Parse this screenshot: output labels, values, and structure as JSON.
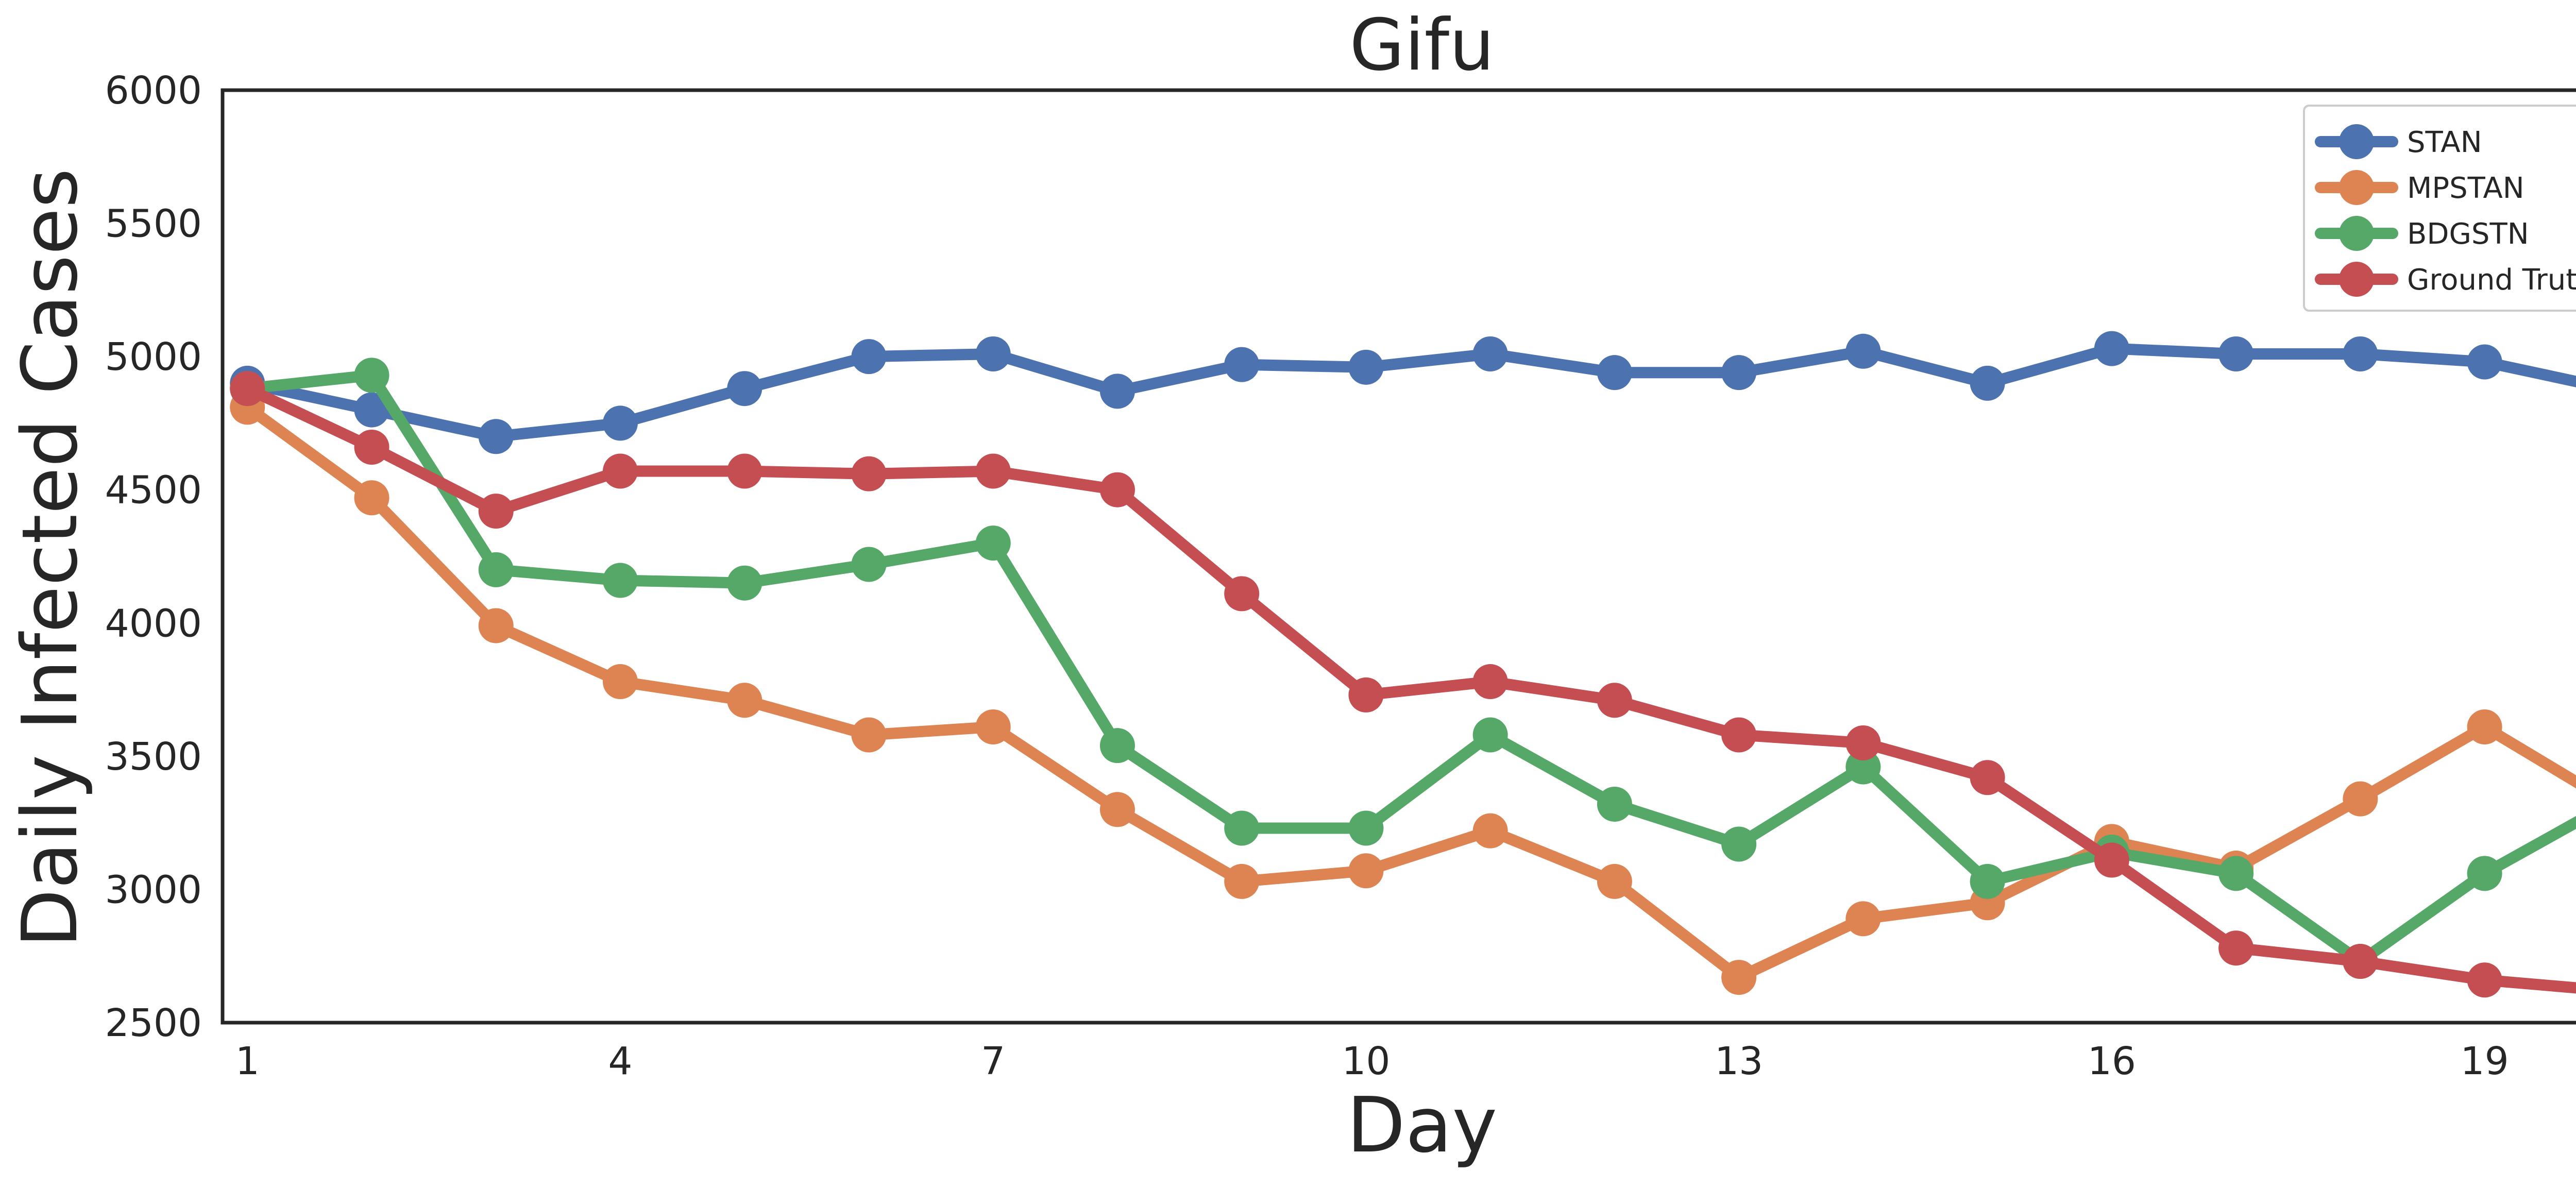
{
  "chart_data": {
    "type": "line",
    "title": "Gifu",
    "xlabel": "Day",
    "ylabel": "Daily Infected Cases",
    "x": [
      1,
      2,
      3,
      4,
      5,
      6,
      7,
      8,
      9,
      10,
      11,
      12,
      13,
      14,
      15,
      16,
      17,
      18,
      19,
      20
    ],
    "xlim": [
      0.8,
      20.1
    ],
    "ylim": [
      2500,
      6000
    ],
    "xticks": [
      1,
      4,
      7,
      10,
      13,
      16,
      19
    ],
    "xtick_labels": [
      "1",
      "4",
      "7",
      "10",
      "13",
      "16",
      "19"
    ],
    "yticks": [
      2500,
      3000,
      3500,
      4000,
      4500,
      5000,
      5500,
      6000
    ],
    "ytick_labels": [
      "2500",
      "3000",
      "3500",
      "4000",
      "4500",
      "5000",
      "5500",
      "6000"
    ],
    "grid": false,
    "legend_position": "top-right",
    "series": [
      {
        "name": "STAN",
        "color": "#4c72b0",
        "values": [
          4900,
          4800,
          4700,
          4750,
          4880,
          5000,
          5010,
          4870,
          4970,
          4960,
          5010,
          4940,
          4940,
          5020,
          4900,
          5030,
          5010,
          5010,
          4980,
          4880
        ]
      },
      {
        "name": "MPSTAN",
        "color": "#dd8452",
        "values": [
          4810,
          4470,
          3990,
          3780,
          3710,
          3580,
          3610,
          3300,
          3030,
          3070,
          3220,
          3030,
          2670,
          2890,
          2950,
          3180,
          3080,
          3340,
          3610,
          3330
        ]
      },
      {
        "name": "BDGSTN",
        "color": "#55a868",
        "values": [
          4880,
          4930,
          4200,
          4160,
          4150,
          4220,
          4300,
          3540,
          3230,
          3230,
          3580,
          3320,
          3170,
          3460,
          3030,
          3140,
          3060,
          2730,
          3060,
          3320
        ]
      },
      {
        "name": "Ground Truth",
        "color": "#c44e52",
        "values": [
          4880,
          4660,
          4420,
          4570,
          4570,
          4560,
          4570,
          4500,
          4110,
          3730,
          3780,
          3710,
          3580,
          3550,
          3420,
          3110,
          2780,
          2730,
          2660,
          2620
        ]
      }
    ]
  }
}
